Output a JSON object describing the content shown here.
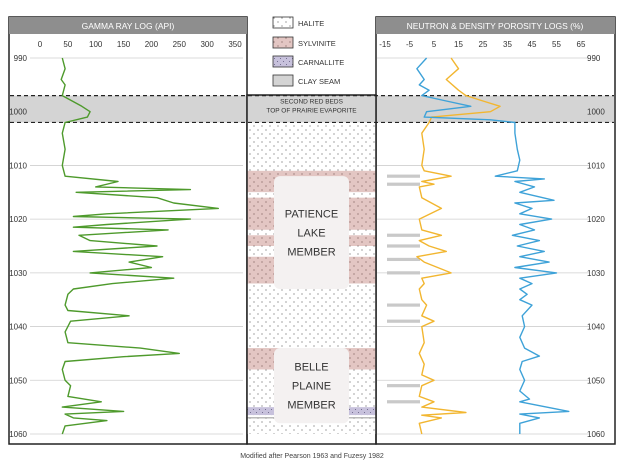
{
  "legend": {
    "items": [
      {
        "label": "HALITE",
        "pattern": "halite"
      },
      {
        "label": "SYLVINITE",
        "pattern": "sylvinite"
      },
      {
        "label": "CARNALLITE",
        "pattern": "carnallite"
      },
      {
        "label": "CLAY SEAM",
        "pattern": "clay"
      }
    ]
  },
  "colors": {
    "header_bg": "#8e8e8e",
    "gamma": "#4e9a2c",
    "neutron": "#f2b630",
    "density": "#3ea2d8",
    "sylvinite": "#e3c6c3",
    "carnallite": "#c7c1dc",
    "clay": "#d4d4d4",
    "member_label_bg": "#f4f1f1"
  },
  "depth_axis": {
    "min": 990,
    "max": 1060,
    "ticks": [
      990,
      1000,
      1010,
      1020,
      1030,
      1040,
      1050,
      1060
    ]
  },
  "marker_band": {
    "top_depth": 997,
    "bottom_depth": 1002,
    "label_line1": "SECOND RED BEDS",
    "label_line2": "TOP OF PRAIRIE EVAPORITE"
  },
  "members": [
    {
      "lines": [
        "PATIENCE",
        "LAKE",
        "MEMBER"
      ],
      "top_depth": 1012,
      "bottom_depth": 1033
    },
    {
      "lines": [
        "BELLE",
        "PLAINE",
        "MEMBER"
      ],
      "top_depth": 1044,
      "bottom_depth": 1058
    }
  ],
  "lithology": [
    {
      "type": "halite",
      "top": 1002,
      "bottom": 1011
    },
    {
      "type": "sylvinite",
      "top": 1011,
      "bottom": 1015
    },
    {
      "type": "halite",
      "top": 1015,
      "bottom": 1016
    },
    {
      "type": "sylvinite",
      "top": 1016,
      "bottom": 1022
    },
    {
      "type": "halite",
      "top": 1022,
      "bottom": 1023
    },
    {
      "type": "sylvinite",
      "top": 1023,
      "bottom": 1025
    },
    {
      "type": "halite",
      "top": 1025,
      "bottom": 1027
    },
    {
      "type": "sylvinite",
      "top": 1027,
      "bottom": 1032
    },
    {
      "type": "halite",
      "top": 1032,
      "bottom": 1044
    },
    {
      "type": "sylvinite",
      "top": 1044,
      "bottom": 1048
    },
    {
      "type": "halite",
      "top": 1048,
      "bottom": 1055
    },
    {
      "type": "carnallite",
      "top": 1055,
      "bottom": 1056.5
    },
    {
      "type": "halite",
      "top": 1056.5,
      "bottom": 1060
    }
  ],
  "thin_seams": [
    1057
  ],
  "chart_data": [
    {
      "type": "line",
      "title": "GAMMA RAY LOG (API)",
      "xlim": [
        0,
        350
      ],
      "xticks": [
        0,
        50,
        100,
        150,
        200,
        250,
        300,
        350
      ],
      "ylim": [
        990,
        1060
      ],
      "ylabel": "",
      "series": [
        {
          "values": [
            [
              40,
              990
            ],
            [
              45,
              992
            ],
            [
              38,
              994
            ],
            [
              45,
              995
            ],
            [
              40,
              997
            ],
            [
              75,
              999
            ],
            [
              90,
              1000
            ],
            [
              85,
              1001
            ],
            [
              45,
              1002
            ],
            [
              40,
              1004
            ],
            [
              45,
              1007
            ],
            [
              40,
              1010
            ],
            [
              45,
              1012
            ],
            [
              140,
              1013
            ],
            [
              100,
              1014
            ],
            [
              270,
              1014.5
            ],
            [
              65,
              1015
            ],
            [
              210,
              1016
            ],
            [
              240,
              1017
            ],
            [
              320,
              1018
            ],
            [
              120,
              1019
            ],
            [
              60,
              1019.5
            ],
            [
              270,
              1020
            ],
            [
              120,
              1021
            ],
            [
              60,
              1021.5
            ],
            [
              230,
              1022
            ],
            [
              70,
              1023
            ],
            [
              90,
              1024
            ],
            [
              210,
              1025
            ],
            [
              60,
              1026
            ],
            [
              220,
              1027
            ],
            [
              160,
              1028
            ],
            [
              200,
              1029
            ],
            [
              90,
              1030
            ],
            [
              240,
              1031
            ],
            [
              130,
              1032
            ],
            [
              60,
              1033
            ],
            [
              50,
              1034
            ],
            [
              45,
              1036
            ],
            [
              50,
              1037
            ],
            [
              160,
              1038
            ],
            [
              55,
              1039
            ],
            [
              45,
              1041
            ],
            [
              50,
              1043
            ],
            [
              180,
              1044
            ],
            [
              250,
              1045
            ],
            [
              150,
              1045.6
            ],
            [
              45,
              1046.5
            ],
            [
              40,
              1048
            ],
            [
              45,
              1050
            ],
            [
              55,
              1051
            ],
            [
              50,
              1053
            ],
            [
              110,
              1054
            ],
            [
              40,
              1055
            ],
            [
              150,
              1055.8
            ],
            [
              45,
              1056.3
            ],
            [
              60,
              1057
            ],
            [
              120,
              1057.5
            ],
            [
              45,
              1058.5
            ],
            [
              40,
              1060
            ]
          ]
        }
      ]
    },
    {
      "type": "line",
      "title": "NEUTRON & DENSITY POROSITY LOGS (%)",
      "xlim": [
        -15,
        65
      ],
      "xticks": [
        -15,
        -5,
        5,
        15,
        25,
        35,
        45,
        55,
        65
      ],
      "ylim": [
        990,
        1060
      ],
      "series": [
        {
          "color_key": "neutron",
          "values": [
            [
              12,
              990
            ],
            [
              15,
              992
            ],
            [
              10,
              994
            ],
            [
              15,
              996
            ],
            [
              18,
              997
            ],
            [
              25,
              998
            ],
            [
              32,
              999
            ],
            [
              28,
              1000
            ],
            [
              4,
              1001
            ],
            [
              3,
              1002
            ],
            [
              0,
              1004
            ],
            [
              1,
              1007
            ],
            [
              0,
              1010
            ],
            [
              1,
              1011
            ],
            [
              12,
              1012
            ],
            [
              0,
              1013
            ],
            [
              5,
              1013.5
            ],
            [
              -1,
              1014
            ],
            [
              0,
              1016
            ],
            [
              8,
              1018
            ],
            [
              -1,
              1020
            ],
            [
              0,
              1022
            ],
            [
              8,
              1023
            ],
            [
              -1,
              1024
            ],
            [
              3,
              1025
            ],
            [
              10,
              1026
            ],
            [
              -2,
              1027
            ],
            [
              1,
              1028
            ],
            [
              12,
              1030
            ],
            [
              0,
              1031
            ],
            [
              1,
              1032
            ],
            [
              -1,
              1033
            ],
            [
              0,
              1035
            ],
            [
              2,
              1036
            ],
            [
              0,
              1038
            ],
            [
              5,
              1039
            ],
            [
              0,
              1040
            ],
            [
              1,
              1043
            ],
            [
              -1,
              1045
            ],
            [
              1,
              1047
            ],
            [
              0,
              1049
            ],
            [
              5,
              1050
            ],
            [
              0,
              1051
            ],
            [
              -1,
              1053
            ],
            [
              5,
              1054
            ],
            [
              0,
              1055
            ],
            [
              18,
              1056
            ],
            [
              0,
              1056.5
            ],
            [
              8,
              1057
            ],
            [
              -1,
              1058
            ],
            [
              0,
              1060
            ]
          ]
        },
        {
          "color_key": "density",
          "values": [
            [
              2,
              990
            ],
            [
              -2,
              992
            ],
            [
              1,
              994
            ],
            [
              -1,
              995
            ],
            [
              3,
              996
            ],
            [
              0,
              997
            ],
            [
              10,
              998
            ],
            [
              20,
              999
            ],
            [
              2,
              1000
            ],
            [
              1,
              1001
            ],
            [
              28,
              1001.5
            ],
            [
              38,
              1002
            ],
            [
              38,
              1004
            ],
            [
              39,
              1007
            ],
            [
              40,
              1009
            ],
            [
              39,
              1011
            ],
            [
              30,
              1012
            ],
            [
              50,
              1012.5
            ],
            [
              38,
              1013
            ],
            [
              46,
              1014
            ],
            [
              40,
              1015
            ],
            [
              54,
              1016.5
            ],
            [
              38,
              1017
            ],
            [
              45,
              1018
            ],
            [
              40,
              1019
            ],
            [
              53,
              1020
            ],
            [
              40,
              1021
            ],
            [
              46,
              1022
            ],
            [
              37,
              1023
            ],
            [
              48,
              1024
            ],
            [
              39,
              1025
            ],
            [
              50,
              1026
            ],
            [
              40,
              1027
            ],
            [
              52,
              1028
            ],
            [
              38,
              1029
            ],
            [
              55,
              1030
            ],
            [
              40,
              1031
            ],
            [
              45,
              1032
            ],
            [
              40,
              1033
            ],
            [
              43,
              1034
            ],
            [
              40,
              1035
            ],
            [
              45,
              1036
            ],
            [
              41,
              1038
            ],
            [
              42,
              1040
            ],
            [
              40,
              1042
            ],
            [
              42,
              1044
            ],
            [
              48,
              1045.5
            ],
            [
              41,
              1046.5
            ],
            [
              40,
              1048
            ],
            [
              42,
              1050
            ],
            [
              40,
              1052
            ],
            [
              44,
              1053.5
            ],
            [
              40,
              1054
            ],
            [
              60,
              1055.8
            ],
            [
              40,
              1056.3
            ],
            [
              48,
              1057
            ],
            [
              40,
              1058
            ],
            [
              40,
              1060
            ]
          ]
        }
      ]
    }
  ],
  "caption": "Modified after Pearson 1963 and Fuzesy 1982"
}
